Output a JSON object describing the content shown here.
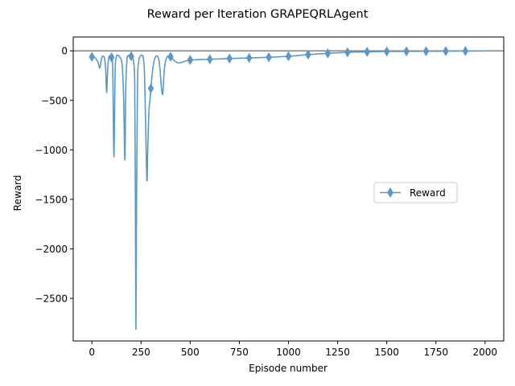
{
  "chart_data": {
    "type": "line",
    "title": "Reward per Iteration GRAPEQRLAgent",
    "xlabel": "Episode number",
    "ylabel": "Reward",
    "xlim": [
      -95,
      2095
    ],
    "ylim": [
      -2930,
      140
    ],
    "xticks": [
      0,
      250,
      500,
      750,
      1000,
      1250,
      1500,
      1750,
      2000
    ],
    "yticks": [
      0,
      -500,
      -1000,
      -1500,
      -2000,
      -2500
    ],
    "xtick_labels": [
      "0",
      "250",
      "500",
      "750",
      "1000",
      "1250",
      "1500",
      "1750",
      "2000"
    ],
    "ytick_labels": [
      "0",
      "−500",
      "−1000",
      "−1500",
      "−2000",
      "−2500"
    ],
    "reference_line": {
      "y": 0,
      "color": "#808080"
    },
    "grid": false,
    "legend": {
      "position": "center-right",
      "entries": [
        "Reward"
      ]
    },
    "series": [
      {
        "name": "Reward",
        "color": "#5b97c7",
        "marker": "thin-diamond",
        "marker_every": 100,
        "x": [
          0,
          8,
          16,
          24,
          32,
          40,
          46,
          52,
          58,
          64,
          70,
          75,
          80,
          86,
          92,
          100,
          106,
          112,
          118,
          124,
          130,
          136,
          142,
          150,
          156,
          162,
          168,
          172,
          178,
          184,
          190,
          196,
          200,
          206,
          212,
          218,
          221,
          224,
          227,
          232,
          238,
          244,
          250,
          256,
          262,
          268,
          274,
          280,
          284,
          290,
          296,
          300,
          306,
          312,
          318,
          324,
          330,
          336,
          342,
          348,
          354,
          360,
          364,
          368,
          374,
          380,
          386,
          392,
          400,
          410,
          420,
          430,
          440,
          450,
          460,
          470,
          480,
          490,
          500,
          600,
          700,
          800,
          900,
          1000,
          1100,
          1200,
          1300,
          1400,
          1500,
          1600,
          1700,
          1800,
          1900,
          2000
        ],
        "y": [
          -60,
          -55,
          -70,
          -90,
          -120,
          -175,
          -110,
          -60,
          -55,
          -75,
          -180,
          -420,
          -200,
          -65,
          -60,
          -65,
          -200,
          -1070,
          -220,
          -65,
          -45,
          -48,
          -65,
          -90,
          -200,
          -520,
          -1100,
          -400,
          -100,
          -50,
          -45,
          -48,
          -55,
          -70,
          -110,
          -350,
          -1400,
          -2810,
          -1600,
          -350,
          -110,
          -60,
          -45,
          -48,
          -75,
          -250,
          -800,
          -1310,
          -1000,
          -620,
          -480,
          -380,
          -250,
          -150,
          -90,
          -60,
          -50,
          -60,
          -110,
          -220,
          -380,
          -440,
          -330,
          -200,
          -110,
          -70,
          -55,
          -52,
          -60,
          -80,
          -100,
          -115,
          -122,
          -120,
          -115,
          -108,
          -100,
          -95,
          -92,
          -85,
          -78,
          -72,
          -65,
          -55,
          -38,
          -25,
          -15,
          -10,
          -6,
          -5,
          -4,
          -3,
          -2,
          -1
        ]
      }
    ]
  }
}
